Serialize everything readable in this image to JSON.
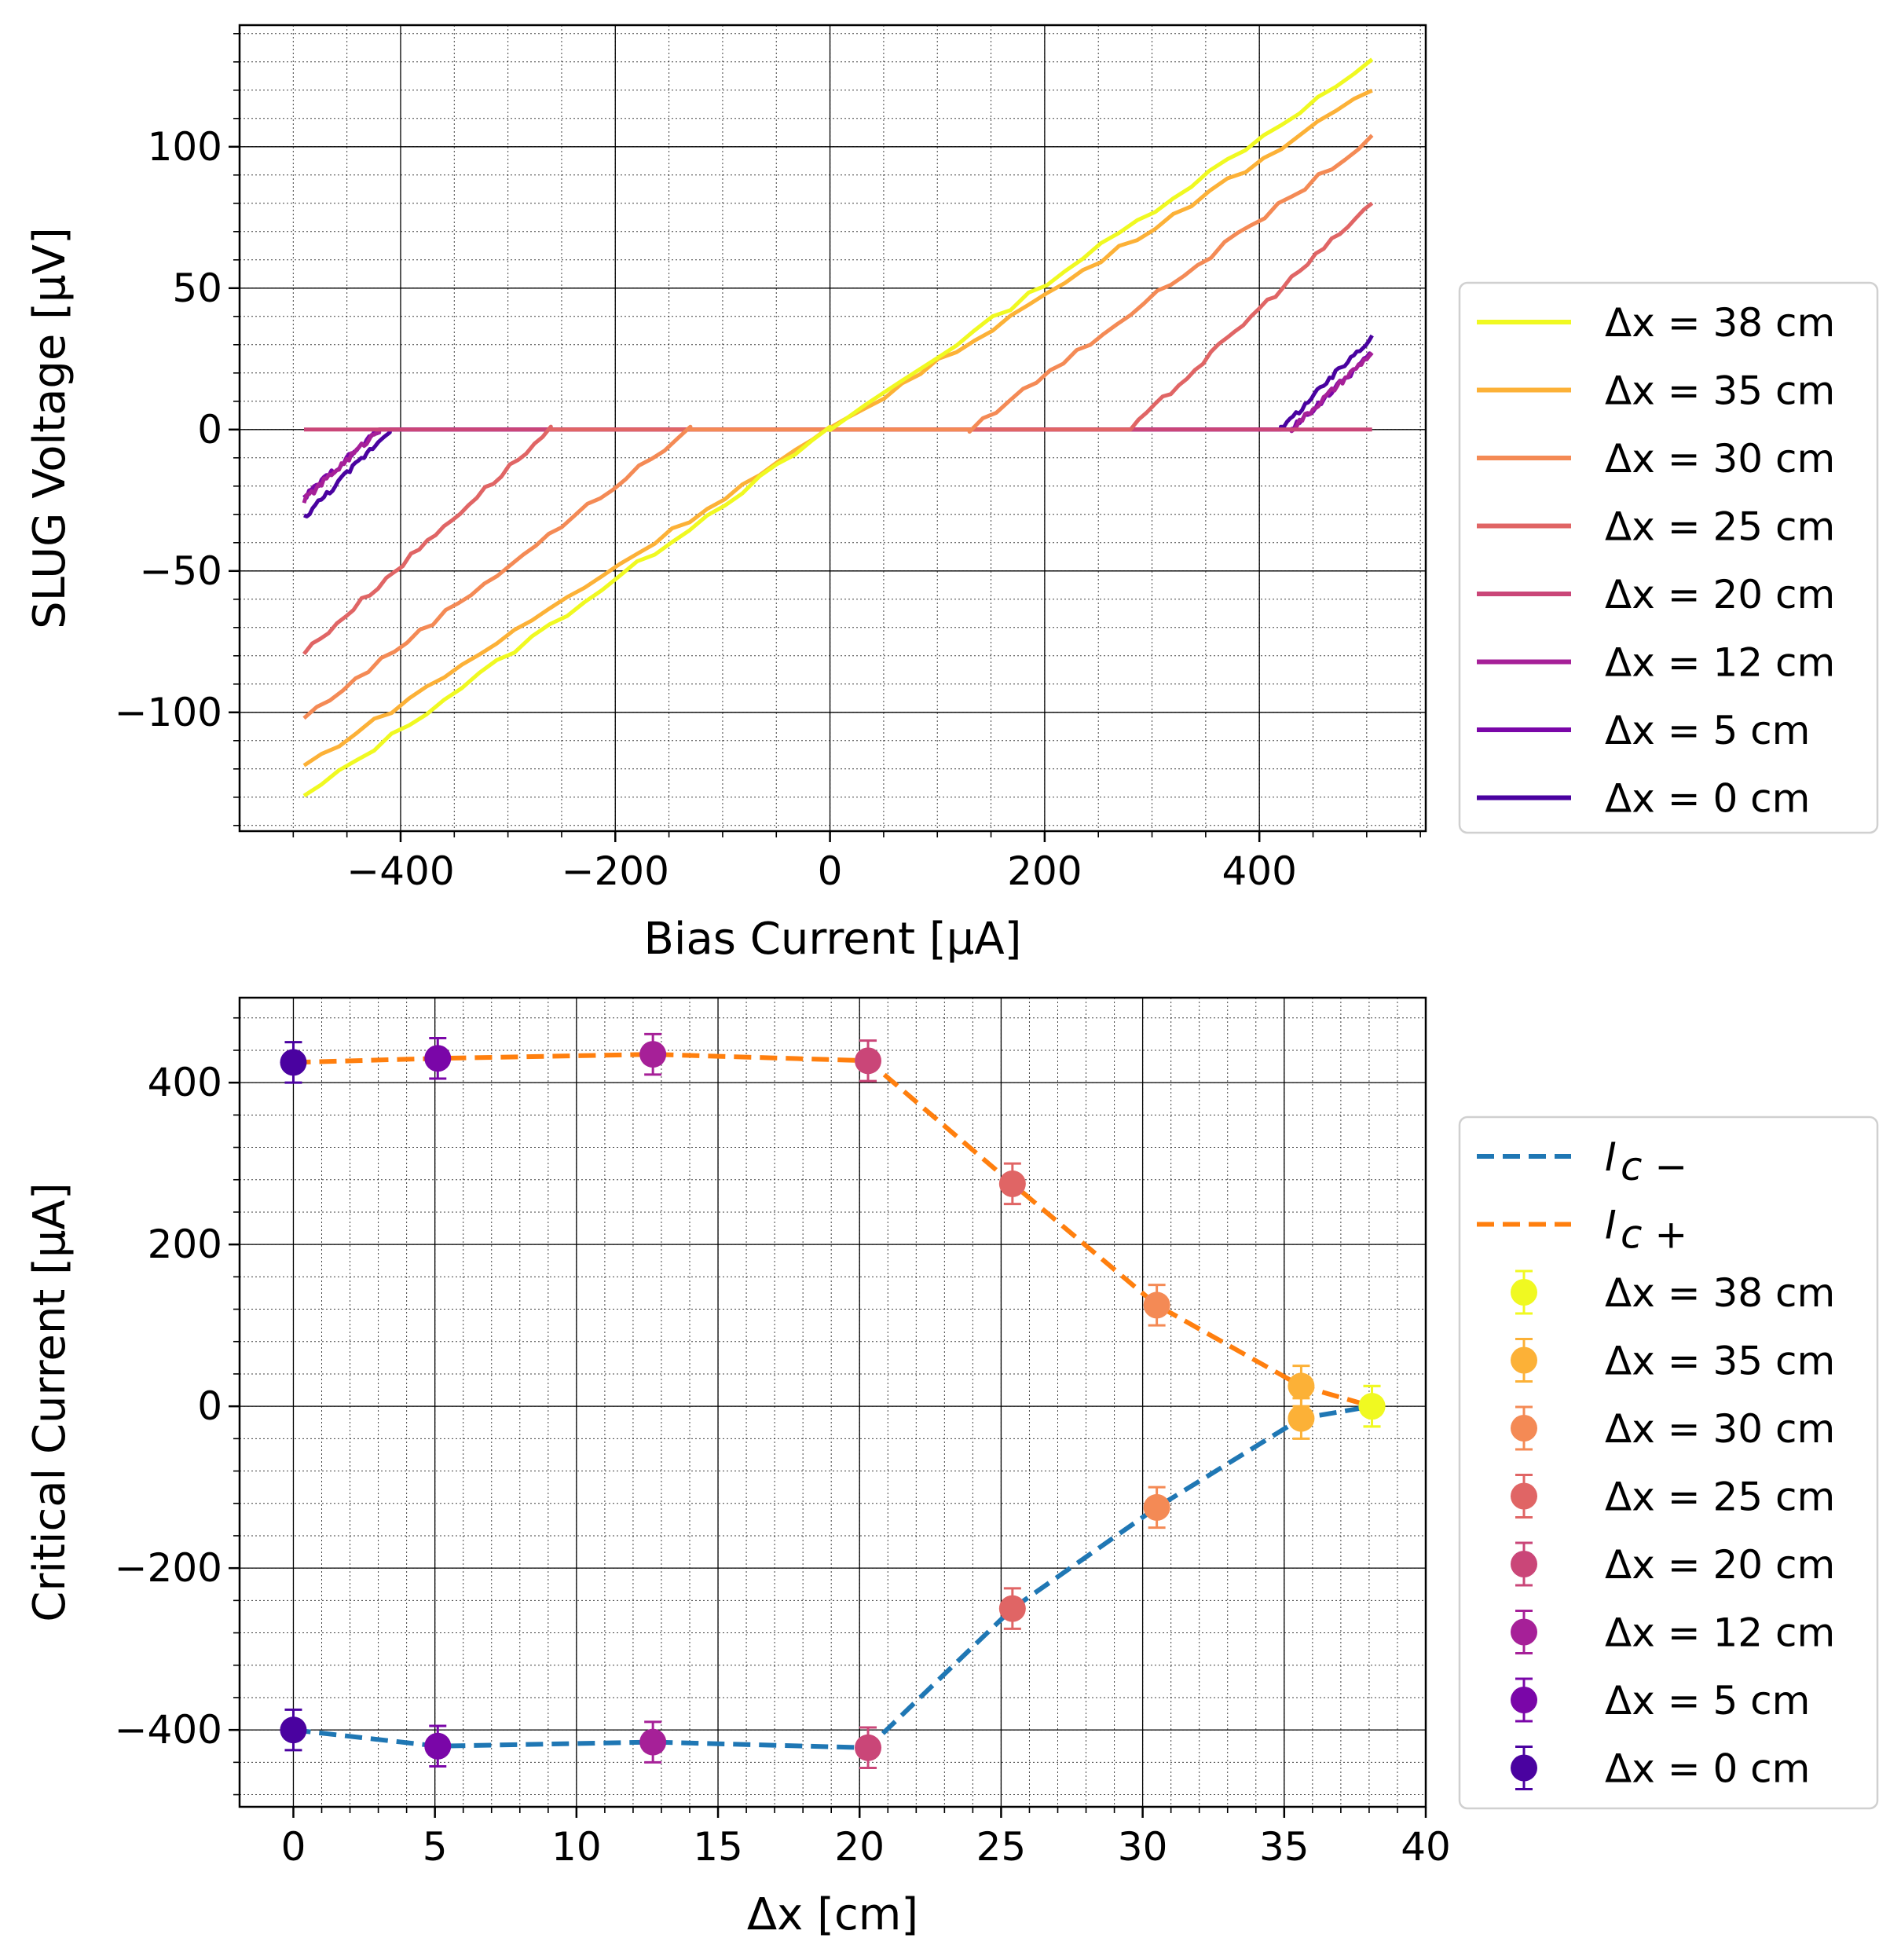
{
  "chart_data": [
    {
      "type": "line",
      "xlabel": "Bias Current [μA]",
      "ylabel": "SLUG Voltage [μV]",
      "xlim": [
        -550,
        555
      ],
      "ylim": [
        -142,
        143
      ],
      "xticks": [
        -400,
        -200,
        0,
        200,
        400
      ],
      "xtick_labels": [
        "−400",
        "−200",
        "0",
        "200",
        "400"
      ],
      "yticks": [
        -100,
        -50,
        0,
        50,
        100
      ],
      "ytick_labels": [
        "−100",
        "−50",
        "0",
        "50",
        "100"
      ],
      "grid": true,
      "legend_position": "right",
      "series": [
        {
          "name": "Δx = 38 cm",
          "color": "#f0f921",
          "x": [
            -490,
            0,
            505
          ],
          "y": [
            -130,
            0,
            130
          ]
        },
        {
          "name": "Δx = 35 cm",
          "color": "#fcb137",
          "x": [
            -490,
            0,
            505
          ],
          "y": [
            -119,
            0,
            120
          ]
        },
        {
          "name": "Δx = 30 cm",
          "color": "#f48a55",
          "x": [
            -490,
            -130,
            130,
            505
          ],
          "y": [
            -102,
            0,
            0,
            103
          ]
        },
        {
          "name": "Δx = 25 cm",
          "color": "#e06565",
          "x": [
            -490,
            -260,
            280,
            505
          ],
          "y": [
            -79,
            0,
            0,
            80
          ]
        },
        {
          "name": "Δx = 20 cm",
          "color": "#ca4678",
          "x": [
            -490,
            -420,
            420,
            505
          ],
          "y": [
            0,
            0,
            0,
            0
          ]
        },
        {
          "name": "Δx = 12 cm",
          "color": "#a62098",
          "x": [
            -490,
            -420,
            430,
            505
          ],
          "y": [
            -25,
            0,
            0,
            27
          ]
        },
        {
          "name": "Δx = 5 cm",
          "color": "#7a06a8",
          "x": [
            -490,
            -420,
            430,
            505
          ],
          "y": [
            -24,
            0,
            0,
            27
          ]
        },
        {
          "name": "Δx = 0 cm",
          "color": "#4a02a0",
          "x": [
            -490,
            -410,
            420,
            505
          ],
          "y": [
            -31,
            0,
            0,
            33
          ]
        }
      ]
    },
    {
      "type": "scatter",
      "xlabel": "Δx [cm]",
      "ylabel": "Critical Current [μA]",
      "xlim": [
        -1.9,
        40
      ],
      "ylim": [
        -495,
        505
      ],
      "xticks": [
        0,
        5,
        10,
        15,
        20,
        25,
        30,
        35,
        40
      ],
      "xtick_labels": [
        "0",
        "5",
        "10",
        "15",
        "20",
        "25",
        "30",
        "35",
        "40"
      ],
      "yticks": [
        -400,
        -200,
        0,
        200,
        400
      ],
      "ytick_labels": [
        "−400",
        "−200",
        "0",
        "200",
        "400"
      ],
      "grid": true,
      "legend_position": "right",
      "lines": [
        {
          "name": "I",
          "sub": "c −",
          "color": "#1f77b4",
          "x": [
            0,
            5.1,
            12.7,
            20.3,
            25.4,
            30.5,
            35.6,
            38.1
          ],
          "y": [
            -400,
            -420,
            -415,
            -422,
            -250,
            -125,
            -15,
            0
          ]
        },
        {
          "name": "I",
          "sub": "c +",
          "color": "#ff7f0e",
          "x": [
            0,
            5.1,
            12.7,
            20.3,
            25.4,
            30.5,
            35.6,
            38.1
          ],
          "y": [
            425,
            430,
            435,
            427,
            275,
            125,
            25,
            0
          ]
        }
      ],
      "points": [
        {
          "name": "Δx = 38 cm",
          "color": "#f0f921",
          "x": 38.1,
          "y_plus": 0,
          "y_minus": 0,
          "err": 25
        },
        {
          "name": "Δx = 35 cm",
          "color": "#fcb137",
          "x": 35.6,
          "y_plus": 25,
          "y_minus": -15,
          "err": 25
        },
        {
          "name": "Δx = 30 cm",
          "color": "#f48a55",
          "x": 30.5,
          "y_plus": 125,
          "y_minus": -125,
          "err": 25
        },
        {
          "name": "Δx = 25 cm",
          "color": "#e06565",
          "x": 25.4,
          "y_plus": 275,
          "y_minus": -250,
          "err": 25
        },
        {
          "name": "Δx = 20 cm",
          "color": "#ca4678",
          "x": 20.3,
          "y_plus": 427,
          "y_minus": -422,
          "err": 25
        },
        {
          "name": "Δx = 12 cm",
          "color": "#a62098",
          "x": 12.7,
          "y_plus": 435,
          "y_minus": -415,
          "err": 25
        },
        {
          "name": "Δx = 5 cm",
          "color": "#7a06a8",
          "x": 5.1,
          "y_plus": 430,
          "y_minus": -420,
          "err": 25
        },
        {
          "name": "Δx = 0 cm",
          "color": "#4a02a0",
          "x": 0,
          "y_plus": 425,
          "y_minus": -400,
          "err": 25
        }
      ]
    }
  ]
}
